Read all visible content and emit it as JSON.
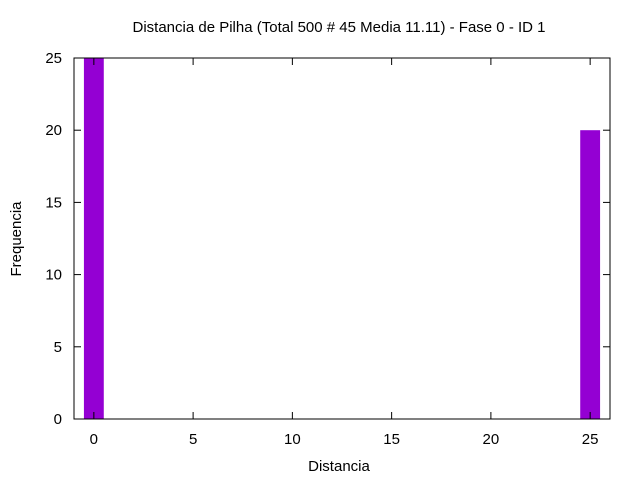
{
  "chart_data": {
    "type": "bar",
    "title": "Distancia de Pilha (Total 500 # 45 Media 11.11) - Fase  0 - ID 1",
    "xlabel": "Distancia",
    "ylabel": "Frequencia",
    "xlim": [
      -1,
      26
    ],
    "ylim": [
      0,
      25
    ],
    "xticks": [
      0,
      5,
      10,
      15,
      20,
      25
    ],
    "yticks": [
      0,
      5,
      10,
      15,
      20,
      25
    ],
    "bar_color": "#9400d3",
    "bar_width": 1,
    "grid": false,
    "legend": false,
    "points": [
      {
        "x": 0,
        "y": 25
      },
      {
        "x": 25,
        "y": 20
      }
    ]
  }
}
